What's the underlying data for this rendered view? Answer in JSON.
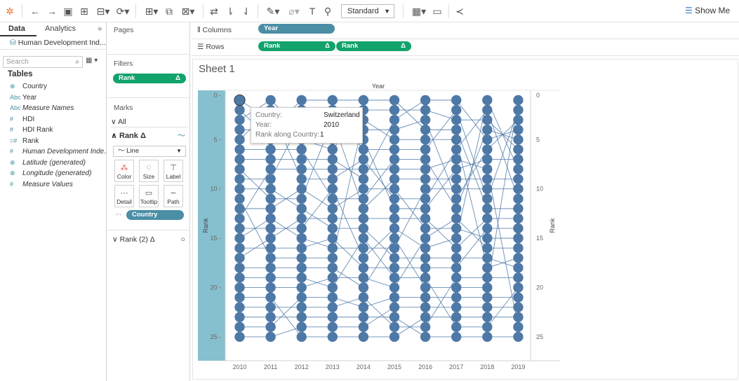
{
  "toolbar": {
    "fit_mode": "Standard",
    "show_me": "Show Me"
  },
  "data_pane": {
    "tabs": [
      "Data",
      "Analytics"
    ],
    "datasource": "Human Development Ind...",
    "search_placeholder": "Search",
    "tables_title": "Tables",
    "fields": [
      {
        "icon": "globe",
        "type": "⊕",
        "label": "Country",
        "italic": false
      },
      {
        "icon": "abc",
        "type": "Abc",
        "label": "Year",
        "italic": false
      },
      {
        "icon": "abc",
        "type": "Abc",
        "label": "Measure Names",
        "italic": true
      },
      {
        "icon": "measure",
        "type": "#",
        "label": "HDI",
        "italic": false
      },
      {
        "icon": "measure",
        "type": "#",
        "label": "HDI Rank",
        "italic": false
      },
      {
        "icon": "calc",
        "type": "=#",
        "label": "Rank",
        "italic": false
      },
      {
        "icon": "measure",
        "type": "#",
        "label": "Human Development Inde...",
        "italic": true
      },
      {
        "icon": "globe",
        "type": "⊕",
        "label": "Latitude (generated)",
        "italic": true
      },
      {
        "icon": "globe",
        "type": "⊕",
        "label": "Longitude (generated)",
        "italic": true
      },
      {
        "icon": "measure",
        "type": "#",
        "label": "Measure Values",
        "italic": true
      }
    ]
  },
  "shelves": {
    "pages_title": "Pages",
    "filters_title": "Filters",
    "filter_pill": "Rank",
    "marks_title": "Marks",
    "marks_all": "All",
    "marks_rank": "Rank",
    "mark_type": "Line",
    "mark_buttons": [
      "Color",
      "Size",
      "Label",
      "Detail",
      "Tooltip",
      "Path"
    ],
    "country_pill": "Country",
    "marks_rank2": "Rank (2)"
  },
  "columns_shelf": {
    "label": "Columns",
    "pills": [
      "Year"
    ]
  },
  "rows_shelf": {
    "label": "Rows",
    "pills": [
      "Rank",
      "Rank"
    ]
  },
  "sheet": {
    "title": "Sheet 1",
    "x_header": "Year",
    "y_label": "Rank"
  },
  "tooltip": {
    "labels": [
      "Country:",
      "Year:",
      "Rank along Country:"
    ],
    "values": [
      "Switzerland",
      "2010",
      "1"
    ]
  },
  "chart_data": {
    "type": "line",
    "title": "Sheet 1",
    "x_header": "Year",
    "ylabel": "Rank",
    "categories": [
      "2010",
      "2011",
      "2012",
      "2013",
      "2014",
      "2015",
      "2016",
      "2017",
      "2018",
      "2019"
    ],
    "ylim": [
      0,
      26
    ],
    "y_ticks": [
      0,
      5,
      10,
      15,
      20,
      25
    ],
    "y_axis_reversed": true,
    "ranks": [
      1,
      2,
      3,
      4,
      5,
      6,
      7,
      8,
      9,
      10,
      11,
      12,
      13,
      14,
      15,
      16,
      17,
      18,
      19,
      20,
      21,
      22,
      23,
      24,
      25
    ],
    "mark_color": "#4e79a7",
    "highlight_band_color": "#86c0cf"
  }
}
